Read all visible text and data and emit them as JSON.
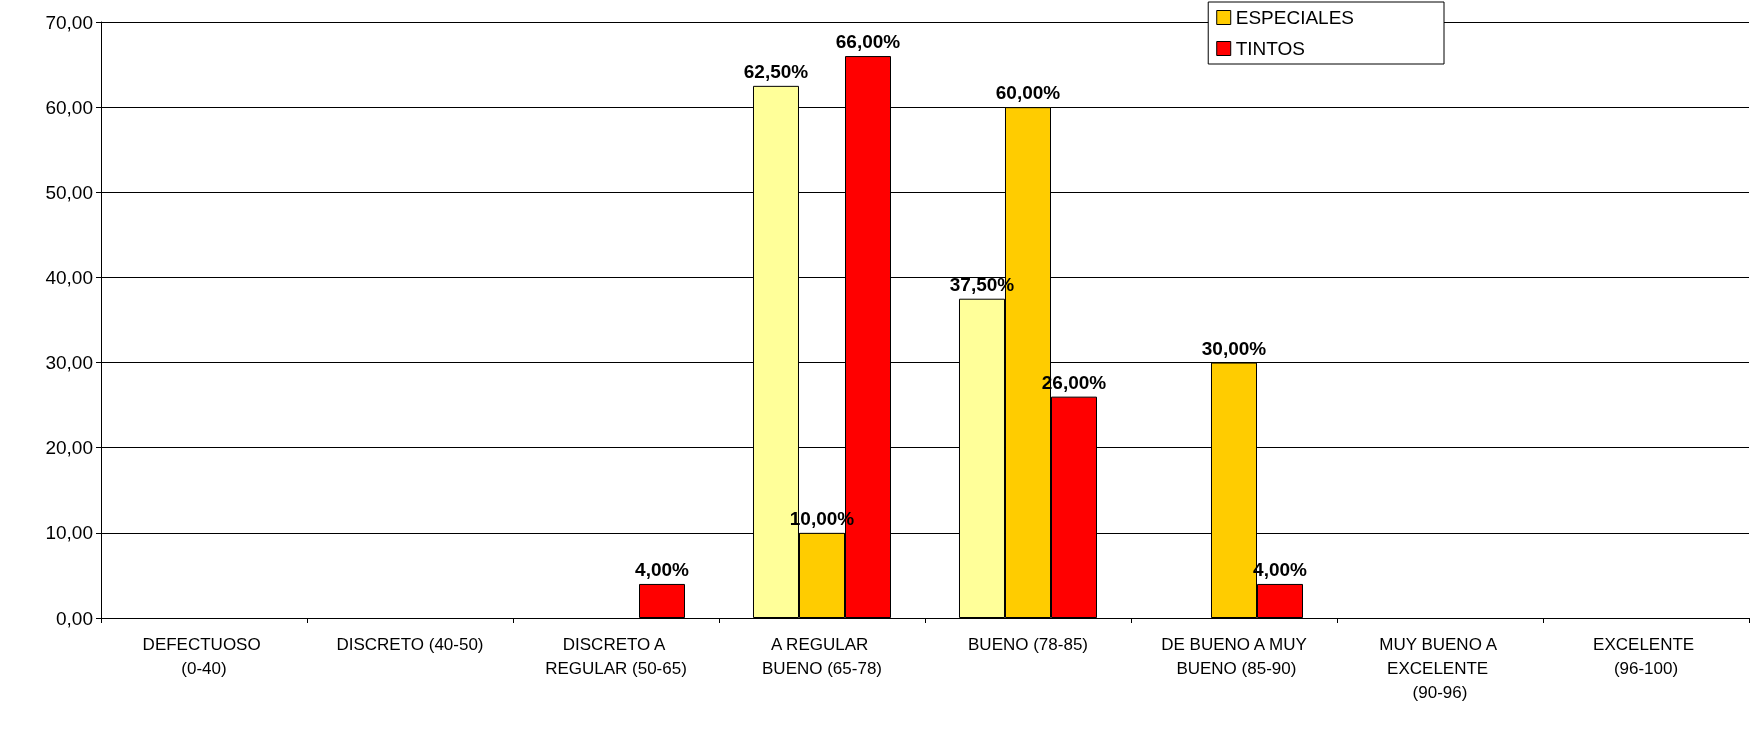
{
  "chart_data": {
    "type": "bar",
    "categories": [
      "DEFECTUOSO (0-40)",
      "DISCRETO (40-50)",
      "DISCRETO A REGULAR (50-65)",
      "A REGULAR BUENO (65-78)",
      "BUENO (78-85)",
      "DE BUENO A MUY BUENO (85-90)",
      "MUY BUENO A EXCELENTE (90-96)",
      "EXCELENTE (96-100)"
    ],
    "series": [
      {
        "color": "#ffff99",
        "values": [
          null,
          null,
          null,
          62.5,
          37.5,
          null,
          null,
          null
        ],
        "value_labels": [
          null,
          null,
          null,
          "62,50%",
          "37,50%",
          null,
          null,
          null
        ]
      },
      {
        "name": "ESPECIALES",
        "color": "#ffcc00",
        "values": [
          null,
          null,
          null,
          10,
          60,
          30,
          null,
          null
        ],
        "value_labels": [
          null,
          null,
          null,
          "10,00%",
          "60,00%",
          "30,00%",
          null,
          null
        ]
      },
      {
        "name": "TINTOS",
        "color": "#ff0000",
        "values": [
          null,
          null,
          4,
          66,
          26,
          4,
          null,
          null
        ],
        "value_labels": [
          null,
          null,
          "4,00%",
          "66,00%",
          "26,00%",
          "4,00%",
          null,
          null
        ]
      }
    ],
    "ylim": [
      0,
      70
    ],
    "yticks": [
      {
        "value": 0,
        "label": "0,00"
      },
      {
        "value": 10,
        "label": "10,00"
      },
      {
        "value": 20,
        "label": "20,00"
      },
      {
        "value": 30,
        "label": "30,00"
      },
      {
        "value": 40,
        "label": "40,00"
      },
      {
        "value": 50,
        "label": "50,00"
      },
      {
        "value": 60,
        "label": "60,00"
      },
      {
        "value": 70,
        "label": "70,00"
      }
    ],
    "grid": "y",
    "legend": "top right"
  }
}
